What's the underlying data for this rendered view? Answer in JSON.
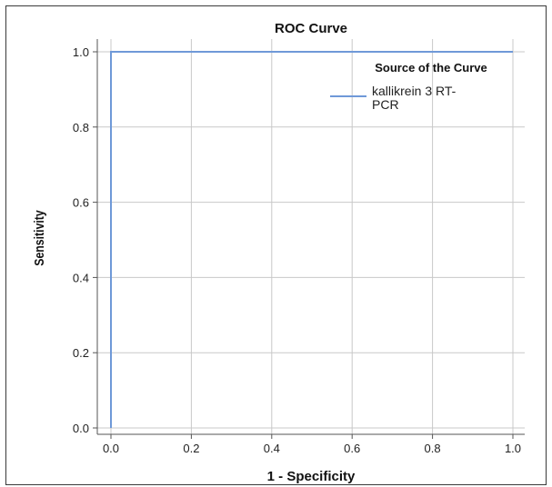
{
  "chart_data": {
    "type": "line",
    "title": "ROC Curve",
    "xlabel": "1 - Specificity",
    "ylabel": "Sensitivity",
    "xlim": [
      0.0,
      1.0
    ],
    "ylim": [
      0.0,
      1.0
    ],
    "xticks": [
      "0.0",
      "0.2",
      "0.4",
      "0.6",
      "0.8",
      "1.0"
    ],
    "yticks": [
      "0.0",
      "0.2",
      "0.4",
      "0.6",
      "0.8",
      "1.0"
    ],
    "grid": true,
    "legend": {
      "title": "Source of the Curve",
      "placement": "top-right",
      "label_lines": [
        "kallikrein 3 RT-",
        "PCR"
      ]
    },
    "series": [
      {
        "name": "kallikrein 3 RT-PCR",
        "color": "#6f99d8",
        "x": [
          0.0,
          0.0,
          1.0
        ],
        "y": [
          0.0,
          1.0,
          1.0
        ]
      }
    ]
  }
}
